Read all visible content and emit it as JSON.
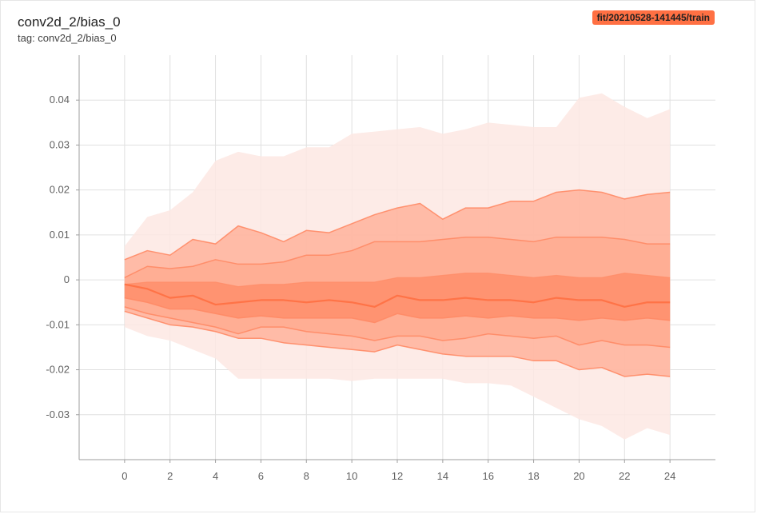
{
  "header": {
    "title": "conv2d_2/bias_0",
    "tag_text": "tag: conv2d_2/bias_0",
    "run_label": "fit/20210528-141445/train"
  },
  "colors": {
    "band_outer": "#fde8e3",
    "band_mid": "#ffab91",
    "band_inner": "#ff8a65",
    "line": "#ff7043",
    "line_soft": "#ff8a65",
    "badge": "#ff7043"
  },
  "chart_data": {
    "type": "area",
    "title": "conv2d_2/bias_0",
    "xlabel": "",
    "ylabel": "",
    "xlim": [
      -2,
      26
    ],
    "ylim": [
      -0.04,
      0.05
    ],
    "grid": true,
    "x_ticks": [
      "0",
      "2",
      "4",
      "6",
      "8",
      "10",
      "12",
      "14",
      "16",
      "18",
      "20",
      "22",
      "24"
    ],
    "y_ticks": [
      "0.04",
      "0.03",
      "0.02",
      "0.01",
      "0",
      "-0.01",
      "-0.02",
      "-0.03"
    ],
    "steps": [
      0,
      1,
      2,
      3,
      4,
      5,
      6,
      7,
      8,
      9,
      10,
      11,
      12,
      13,
      14,
      15,
      16,
      17,
      18,
      19,
      20,
      21,
      22,
      23,
      24
    ],
    "series": [
      {
        "values": [
          0.0075,
          0.014,
          0.0155,
          0.0195,
          0.0265,
          0.0285,
          0.0275,
          0.0275,
          0.0295,
          0.0295,
          0.0325,
          0.033,
          0.0335,
          0.034,
          0.0325,
          0.0335,
          0.035,
          0.0345,
          0.034,
          0.034,
          0.0405,
          0.0415,
          0.0385,
          0.036,
          0.038
        ]
      },
      {
        "values": [
          0.0045,
          0.0065,
          0.0055,
          0.009,
          0.008,
          0.012,
          0.0105,
          0.0085,
          0.011,
          0.0105,
          0.0125,
          0.0145,
          0.016,
          0.017,
          0.0135,
          0.016,
          0.016,
          0.0175,
          0.0175,
          0.0195,
          0.02,
          0.0195,
          0.018,
          0.019,
          0.0195
        ]
      },
      {
        "values": [
          0.0005,
          0.003,
          0.0025,
          0.003,
          0.0045,
          0.0035,
          0.0035,
          0.004,
          0.0055,
          0.0055,
          0.0065,
          0.0085,
          0.0085,
          0.0085,
          0.009,
          0.0095,
          0.0095,
          0.009,
          0.0085,
          0.0095,
          0.0095,
          0.0095,
          0.009,
          0.008,
          0.008
        ]
      },
      {
        "values": [
          -0.001,
          -0.0005,
          -0.0005,
          -0.0005,
          -0.0005,
          -0.0015,
          -0.001,
          -0.001,
          -0.0005,
          -0.0005,
          -0.0005,
          -0.0005,
          0.0005,
          0.0005,
          0.001,
          0.0015,
          0.0015,
          0.001,
          0.0005,
          0.001,
          0.0005,
          0.0005,
          0.0015,
          0.001,
          0.0005
        ]
      },
      {
        "values": [
          -0.001,
          -0.002,
          -0.004,
          -0.0035,
          -0.0055,
          -0.005,
          -0.0045,
          -0.0045,
          -0.005,
          -0.0045,
          -0.005,
          -0.006,
          -0.0035,
          -0.0045,
          -0.0045,
          -0.004,
          -0.0045,
          -0.0045,
          -0.005,
          -0.004,
          -0.0045,
          -0.0045,
          -0.006,
          -0.005,
          -0.005
        ]
      },
      {
        "values": [
          -0.004,
          -0.005,
          -0.0065,
          -0.0065,
          -0.0075,
          -0.0085,
          -0.008,
          -0.0085,
          -0.0085,
          -0.0085,
          -0.0085,
          -0.0095,
          -0.0075,
          -0.0085,
          -0.0085,
          -0.008,
          -0.0085,
          -0.008,
          -0.0085,
          -0.0085,
          -0.009,
          -0.0085,
          -0.009,
          -0.0085,
          -0.009
        ]
      },
      {
        "values": [
          -0.006,
          -0.0075,
          -0.0085,
          -0.0095,
          -0.0105,
          -0.012,
          -0.0105,
          -0.0105,
          -0.0115,
          -0.012,
          -0.0125,
          -0.0135,
          -0.0125,
          -0.0125,
          -0.0135,
          -0.013,
          -0.012,
          -0.0125,
          -0.013,
          -0.0125,
          -0.0145,
          -0.0135,
          -0.0145,
          -0.0145,
          -0.015
        ]
      },
      {
        "values": [
          -0.007,
          -0.0085,
          -0.01,
          -0.0105,
          -0.0115,
          -0.013,
          -0.013,
          -0.014,
          -0.0145,
          -0.015,
          -0.0155,
          -0.016,
          -0.0145,
          -0.0155,
          -0.0165,
          -0.017,
          -0.017,
          -0.017,
          -0.018,
          -0.018,
          -0.02,
          -0.0195,
          -0.0215,
          -0.021,
          -0.0215
        ]
      },
      {
        "values": [
          -0.0105,
          -0.0125,
          -0.0135,
          -0.0155,
          -0.0175,
          -0.022,
          -0.022,
          -0.022,
          -0.022,
          -0.022,
          -0.0225,
          -0.022,
          -0.022,
          -0.022,
          -0.022,
          -0.023,
          -0.023,
          -0.0235,
          -0.026,
          -0.0285,
          -0.031,
          -0.0325,
          -0.0355,
          -0.033,
          -0.0345
        ]
      }
    ]
  }
}
